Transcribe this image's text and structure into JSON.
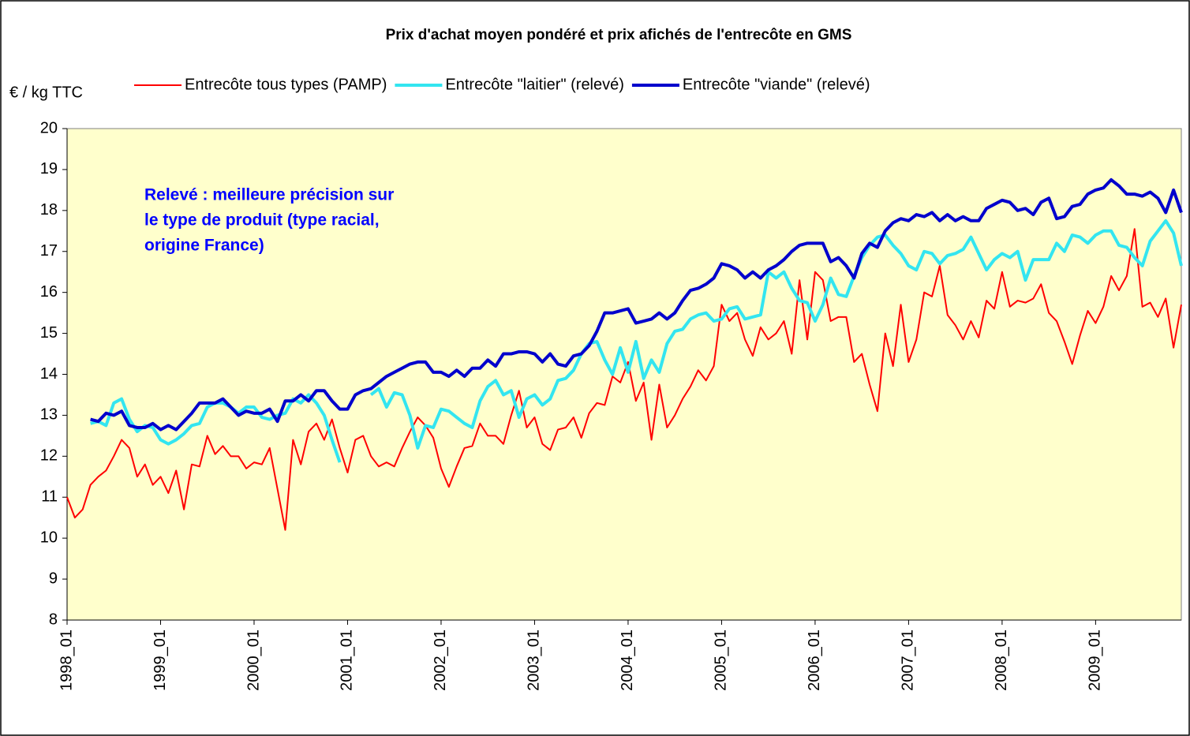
{
  "chart_data": {
    "type": "line",
    "title": "Prix d'achat moyen pondéré et prix afichés de l'entrecôte en GMS",
    "y_label": "€ / kg TTC",
    "annotation": [
      "Relevé : meilleure précision sur",
      "le type de produit (type racial,",
      "origine France)"
    ],
    "annotation_color": "#0000ff",
    "background": "#ffffcc",
    "grid": false,
    "ylim": [
      8,
      20
    ],
    "yticks": [
      8,
      9,
      10,
      11,
      12,
      13,
      14,
      15,
      16,
      17,
      18,
      19,
      20
    ],
    "categories": [
      "1998_01",
      null,
      null,
      null,
      null,
      null,
      null,
      null,
      null,
      null,
      null,
      null,
      "1999_01",
      null,
      null,
      null,
      null,
      null,
      null,
      null,
      null,
      null,
      null,
      null,
      "2000_01",
      null,
      null,
      null,
      null,
      null,
      null,
      null,
      null,
      null,
      null,
      null,
      "2001_01",
      null,
      null,
      null,
      null,
      null,
      null,
      null,
      null,
      null,
      null,
      null,
      "2002_01",
      null,
      null,
      null,
      null,
      null,
      null,
      null,
      null,
      null,
      null,
      null,
      "2003_01",
      null,
      null,
      null,
      null,
      null,
      null,
      null,
      null,
      null,
      null,
      null,
      "2004_01",
      null,
      null,
      null,
      null,
      null,
      null,
      null,
      null,
      null,
      null,
      null,
      "2005_01",
      null,
      null,
      null,
      null,
      null,
      null,
      null,
      null,
      null,
      null,
      null,
      "2006_01",
      null,
      null,
      null,
      null,
      null,
      null,
      null,
      null,
      null,
      null,
      null,
      "2007_01",
      null,
      null,
      null,
      null,
      null,
      null,
      null,
      null,
      null,
      null,
      null,
      "2008_01",
      null,
      null,
      null,
      null,
      null,
      null,
      null,
      null,
      null,
      null,
      null,
      "2009_01",
      null,
      null,
      null,
      null,
      null,
      null,
      null,
      null,
      null,
      null,
      null
    ],
    "series": [
      {
        "name": "Entrecôte tous types (PAMP)",
        "color": "#ff0000",
        "width": 2,
        "values": [
          11.0,
          10.5,
          10.7,
          11.3,
          11.5,
          11.65,
          12.0,
          12.4,
          12.2,
          11.5,
          11.8,
          11.3,
          11.5,
          11.1,
          11.65,
          10.7,
          11.8,
          11.75,
          12.5,
          12.05,
          12.25,
          12.0,
          12.0,
          11.7,
          11.85,
          11.8,
          12.2,
          11.2,
          10.2,
          12.4,
          11.8,
          12.6,
          12.8,
          12.4,
          12.9,
          12.2,
          11.6,
          12.4,
          12.5,
          12.0,
          11.75,
          11.85,
          11.75,
          12.2,
          12.6,
          12.95,
          12.75,
          12.45,
          11.7,
          11.25,
          11.75,
          12.2,
          12.25,
          12.8,
          12.5,
          12.5,
          12.3,
          13.0,
          13.6,
          12.7,
          12.95,
          12.3,
          12.15,
          12.65,
          12.7,
          12.95,
          12.45,
          13.05,
          13.3,
          13.25,
          13.95,
          13.8,
          14.3,
          13.35,
          13.8,
          12.4,
          13.75,
          12.7,
          13.0,
          13.4,
          13.7,
          14.1,
          13.85,
          14.2,
          15.7,
          15.3,
          15.5,
          14.85,
          14.45,
          15.15,
          14.85,
          15.0,
          15.3,
          14.5,
          16.3,
          14.85,
          16.5,
          16.3,
          15.3,
          15.4,
          15.4,
          14.3,
          14.5,
          13.75,
          13.1,
          15.0,
          14.2,
          15.7,
          14.3,
          14.85,
          16.0,
          15.9,
          16.65,
          15.45,
          15.2,
          14.85,
          15.3,
          14.9,
          15.8,
          15.6,
          16.5,
          15.65,
          15.8,
          15.75,
          15.85,
          16.2,
          15.5,
          15.3,
          14.8,
          14.25,
          14.95,
          15.55,
          15.25,
          15.65,
          16.4,
          16.05,
          16.4,
          17.55,
          15.65,
          15.75,
          15.4,
          15.85,
          14.65,
          15.7
        ]
      },
      {
        "name": "Entrecôte \"laitier\" (relevé)",
        "color": "#33e5f0",
        "width": 4,
        "values": [
          null,
          null,
          null,
          12.8,
          12.85,
          12.75,
          13.3,
          13.4,
          12.9,
          12.6,
          12.75,
          12.7,
          12.4,
          12.3,
          12.4,
          12.55,
          12.75,
          12.8,
          13.2,
          13.3,
          13.3,
          13.2,
          13.05,
          13.2,
          13.2,
          12.95,
          12.9,
          13.0,
          13.05,
          13.4,
          13.3,
          13.5,
          13.3,
          13.0,
          12.4,
          11.85,
          null,
          null,
          null,
          13.5,
          13.65,
          13.2,
          13.55,
          13.5,
          13.0,
          12.2,
          12.75,
          12.7,
          13.15,
          13.1,
          12.95,
          12.8,
          12.7,
          13.35,
          13.7,
          13.85,
          13.5,
          13.6,
          12.95,
          13.4,
          13.5,
          13.25,
          13.4,
          13.85,
          13.9,
          14.1,
          14.5,
          14.75,
          14.8,
          14.35,
          14.0,
          14.65,
          14.05,
          14.8,
          13.9,
          14.35,
          14.05,
          14.75,
          15.05,
          15.1,
          15.35,
          15.45,
          15.5,
          15.3,
          15.35,
          15.6,
          15.65,
          15.35,
          15.4,
          15.45,
          16.5,
          16.35,
          16.5,
          16.1,
          15.8,
          15.75,
          15.3,
          15.7,
          16.35,
          15.95,
          15.9,
          16.4,
          16.85,
          17.15,
          17.35,
          17.4,
          17.15,
          16.95,
          16.65,
          16.55,
          17.0,
          16.95,
          16.7,
          16.9,
          16.95,
          17.05,
          17.35,
          16.95,
          16.55,
          16.8,
          16.95,
          16.85,
          17.0,
          16.3,
          16.8,
          16.8,
          16.8,
          17.2,
          17.0,
          17.4,
          17.35,
          17.2,
          17.4,
          17.5,
          17.5,
          17.15,
          17.1,
          16.85,
          16.65,
          17.25,
          17.5,
          17.75,
          17.45,
          16.65
        ]
      },
      {
        "name": "Entrecôte \"viande\" (relevé)",
        "color": "#0000cc",
        "width": 4,
        "values": [
          null,
          null,
          null,
          12.9,
          12.85,
          13.05,
          13.0,
          13.1,
          12.75,
          12.7,
          12.7,
          12.8,
          12.65,
          12.75,
          12.65,
          12.85,
          13.05,
          13.3,
          13.3,
          13.3,
          13.4,
          13.2,
          13.0,
          13.1,
          13.05,
          13.05,
          13.15,
          12.85,
          13.35,
          13.35,
          13.5,
          13.35,
          13.6,
          13.6,
          13.35,
          13.15,
          13.15,
          13.5,
          13.6,
          13.65,
          13.8,
          13.95,
          14.05,
          14.15,
          14.25,
          14.3,
          14.3,
          14.05,
          14.05,
          13.95,
          14.1,
          13.95,
          14.15,
          14.15,
          14.35,
          14.2,
          14.5,
          14.5,
          14.55,
          14.55,
          14.5,
          14.3,
          14.5,
          14.25,
          14.2,
          14.45,
          14.5,
          14.7,
          15.05,
          15.5,
          15.5,
          15.55,
          15.6,
          15.25,
          15.3,
          15.35,
          15.5,
          15.35,
          15.5,
          15.8,
          16.05,
          16.1,
          16.2,
          16.35,
          16.7,
          16.65,
          16.55,
          16.35,
          16.5,
          16.35,
          16.55,
          16.65,
          16.8,
          17.0,
          17.15,
          17.2,
          17.2,
          17.2,
          16.75,
          16.85,
          16.65,
          16.35,
          16.95,
          17.2,
          17.1,
          17.5,
          17.7,
          17.8,
          17.75,
          17.9,
          17.85,
          17.95,
          17.75,
          17.9,
          17.75,
          17.85,
          17.75,
          17.75,
          18.05,
          18.15,
          18.25,
          18.2,
          18.0,
          18.05,
          17.9,
          18.2,
          18.3,
          17.8,
          17.85,
          18.1,
          18.15,
          18.4,
          18.5,
          18.55,
          18.75,
          18.6,
          18.4,
          18.4,
          18.35,
          18.45,
          18.3,
          17.95,
          18.5,
          17.95
        ]
      }
    ]
  }
}
